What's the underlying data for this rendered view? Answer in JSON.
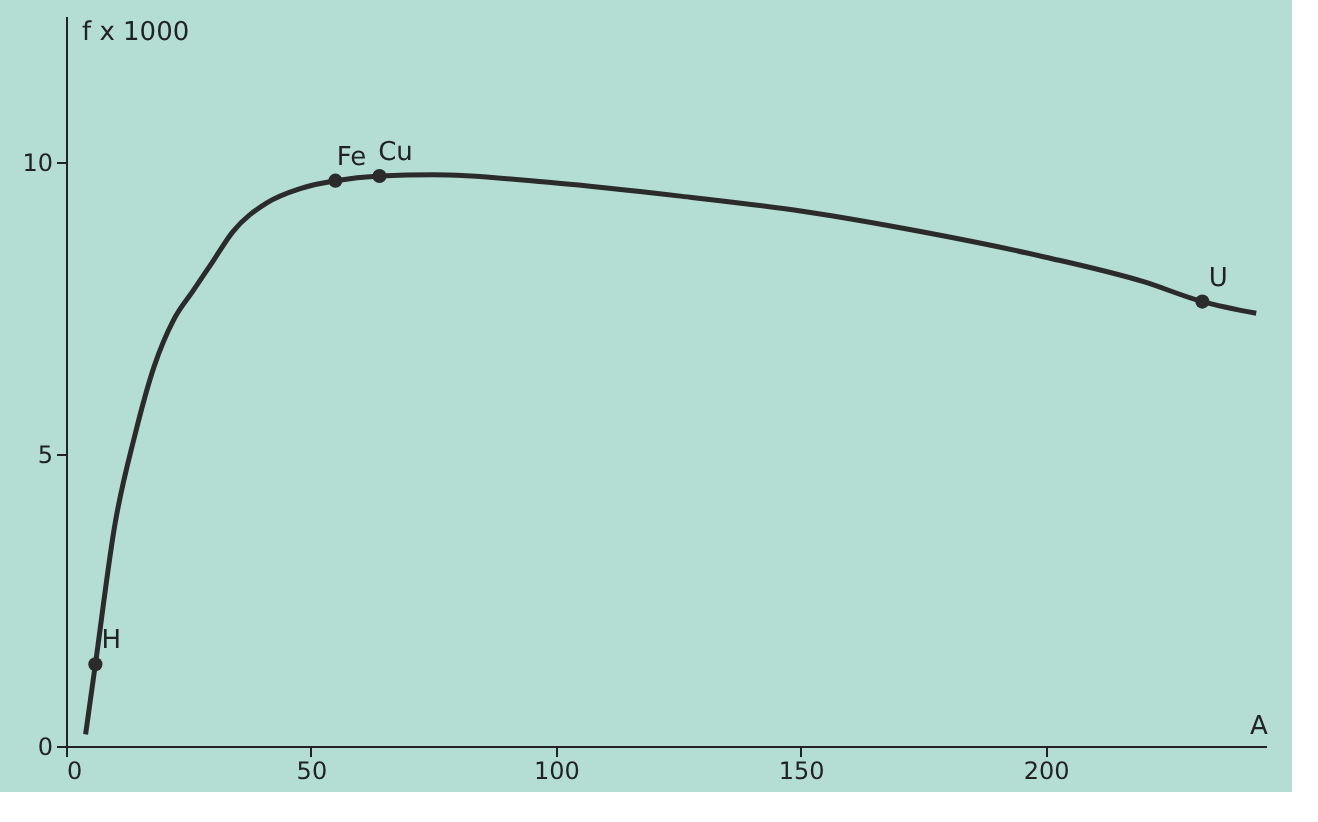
{
  "chart_data": {
    "type": "line",
    "xlabel": "A",
    "ylabel": "f x 1000",
    "series": [
      {
        "color": "#2b2b2b",
        "x": [
          4,
          6,
          10,
          14,
          18,
          22,
          26,
          30,
          34,
          41,
          48,
          55,
          64,
          75,
          100,
          125,
          150,
          175,
          200,
          220,
          232,
          243
        ],
        "values": [
          0.2,
          1.4,
          3.8,
          5.3,
          6.5,
          7.3,
          7.8,
          8.3,
          8.8,
          9.3,
          9.55,
          9.68,
          9.76,
          9.78,
          9.64,
          9.42,
          9.16,
          8.8,
          8.37,
          7.95,
          7.61,
          7.41
        ]
      },
      {
        "type": "scatter",
        "color": "#2b2b2b",
        "x": [
          6,
          55,
          64,
          232
        ],
        "values": [
          1.4,
          9.68,
          9.76,
          7.61
        ]
      }
    ],
    "annotations": [
      {
        "text": "H",
        "x": 6,
        "y": 1.4
      },
      {
        "text": "Fe",
        "x": 55,
        "y": 9.68
      },
      {
        "text": "Cu",
        "x": 64,
        "y": 9.76
      },
      {
        "text": "U",
        "x": 232,
        "y": 7.61
      }
    ],
    "xlim": [
      0,
      245
    ],
    "ylim": [
      0,
      12.5
    ],
    "xticks": [
      0,
      50,
      100,
      150,
      200
    ],
    "yticks": [
      0,
      5,
      10
    ],
    "grid": false
  }
}
